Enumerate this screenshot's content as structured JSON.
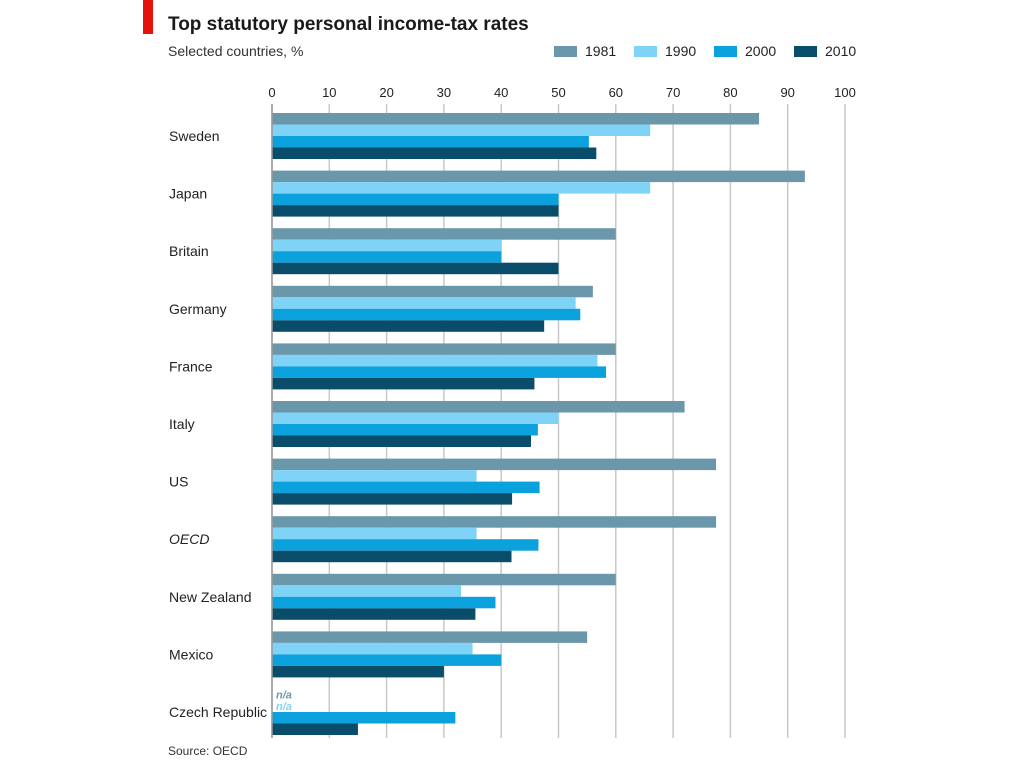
{
  "colors": {
    "accent": "#e3120b",
    "s1981": "#6b97ab",
    "s1990": "#7fd3f7",
    "s2000": "#0aa1dc",
    "s2010": "#0a4d6b",
    "grid": "#c8c8c8"
  },
  "chart_data": {
    "type": "bar",
    "orientation": "horizontal",
    "title": "Top statutory personal income-tax rates",
    "subtitle": "Selected countries, %",
    "source": "Source: OECD",
    "xlim": [
      0,
      100
    ],
    "ticks": [
      "0",
      "10",
      "20",
      "30",
      "40",
      "50",
      "60",
      "70",
      "80",
      "90",
      "100"
    ],
    "categories": [
      "Sweden",
      "Japan",
      "Britain",
      "Germany",
      "France",
      "Italy",
      "US",
      "OECD",
      "New Zealand",
      "Mexico",
      "Czech Republic"
    ],
    "italic_categories": [
      "OECD"
    ],
    "na_label": "n/a",
    "series": [
      {
        "name": "1981",
        "color_key": "s1981",
        "values": [
          85,
          93,
          60,
          56,
          60,
          72,
          77.5,
          77.5,
          60,
          55,
          null
        ]
      },
      {
        "name": "1990",
        "color_key": "s1990",
        "values": [
          66,
          66,
          40,
          53,
          56.8,
          50,
          35.7,
          35.7,
          33,
          35,
          null
        ]
      },
      {
        "name": "2000",
        "color_key": "s2000",
        "values": [
          55.3,
          50,
          40,
          53.8,
          58.3,
          46.4,
          46.7,
          46.5,
          39,
          40,
          32
        ]
      },
      {
        "name": "2010",
        "color_key": "s2010",
        "values": [
          56.6,
          50,
          50,
          47.5,
          45.8,
          45.2,
          41.9,
          41.8,
          35.5,
          30,
          15
        ]
      }
    ]
  }
}
